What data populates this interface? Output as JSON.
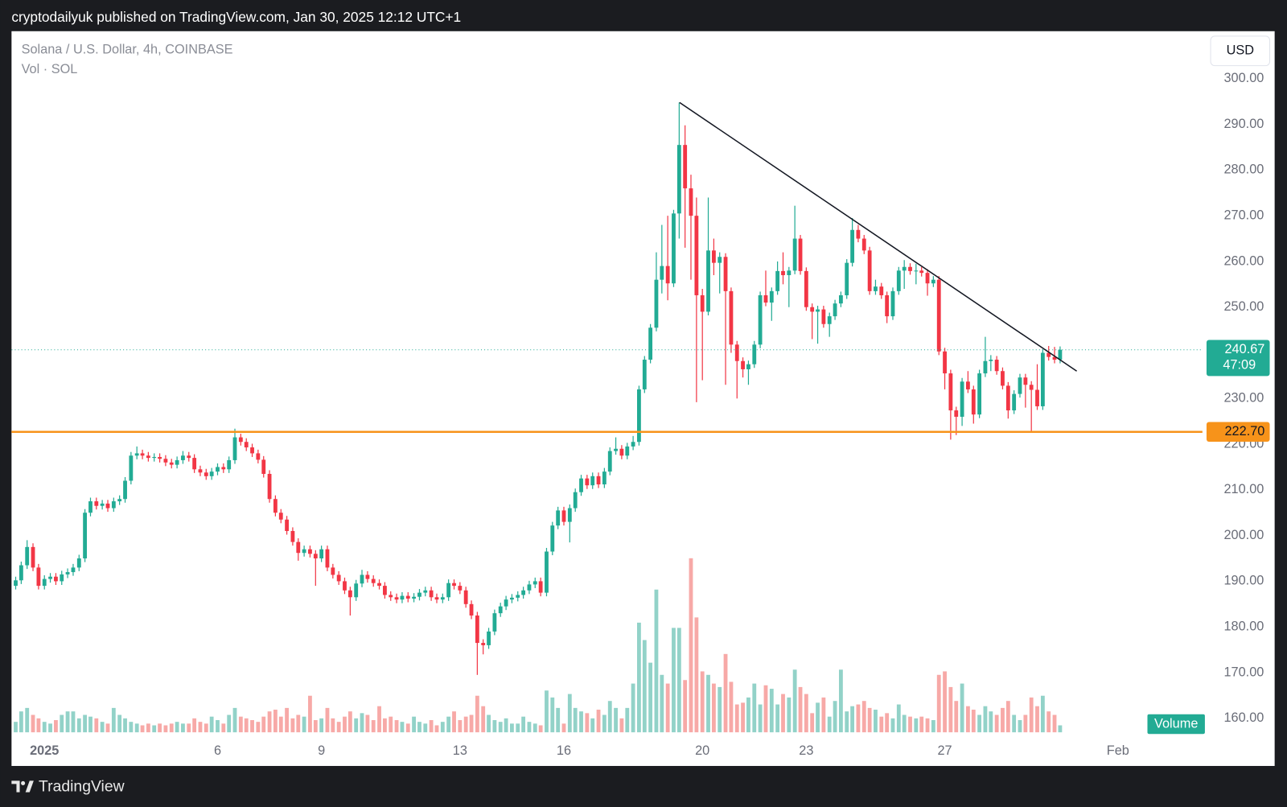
{
  "header": {
    "publisher": "cryptodailyuk published on TradingView.com, Jan 30, 2025 12:12 UTC+1",
    "brand": "TradingView"
  },
  "chart_data": {
    "type": "candlestick",
    "title": "Solana / U.S. Dollar, 4h, COINBASE",
    "volume_label": "Vol · SOL",
    "currency": "USD",
    "volume_badge": "Volume",
    "up_color": "#22ab94",
    "down_color": "#f23645",
    "volume_up_color": "#92d2c8",
    "volume_down_color": "#f7a9a7",
    "grid": false,
    "xlim": [
      0.05,
      34.44
    ],
    "xticks": [
      {
        "value": 1,
        "label": "2025"
      },
      6,
      9,
      13,
      16,
      20,
      23,
      27,
      {
        "value": 32,
        "label": "Feb"
      }
    ],
    "ylim": [
      155.5,
      310.4
    ],
    "yticks": [
      {
        "value": 160,
        "label": "160.00"
      },
      {
        "value": 170,
        "label": "170.00"
      },
      {
        "value": 180,
        "label": "180.00"
      },
      {
        "value": 190,
        "label": "190.00"
      },
      {
        "value": 200,
        "label": "200.00"
      },
      {
        "value": 210,
        "label": "210.00"
      },
      {
        "value": 220,
        "label": "220.00"
      },
      {
        "value": 230,
        "label": "230.00"
      },
      {
        "value": 240,
        "label": "240.00"
      },
      {
        "value": 250,
        "label": "250.00"
      },
      {
        "value": 260,
        "label": "260.00"
      },
      {
        "value": 270,
        "label": "270.00"
      },
      {
        "value": 280,
        "label": "280.00"
      },
      {
        "value": 290,
        "label": "290.00"
      },
      {
        "value": 300,
        "label": "300.00"
      }
    ],
    "vlim": [
      0,
      100
    ],
    "support": {
      "value": 222.7,
      "label": "222.70",
      "color": "#f7931a"
    },
    "last_price": {
      "value": 240.67,
      "countdown": "47:09"
    },
    "trendline": {
      "x": [
        19.34,
        30.81
      ],
      "y": [
        294.8,
        236.0
      ]
    },
    "x": [
      0.17,
      0.33,
      0.5,
      0.67,
      0.83,
      1,
      1.17,
      1.33,
      1.5,
      1.67,
      1.83,
      2,
      2.17,
      2.33,
      2.5,
      2.67,
      2.83,
      3,
      3.17,
      3.33,
      3.5,
      3.67,
      3.83,
      4,
      4.17,
      4.33,
      4.5,
      4.67,
      4.83,
      5,
      5.17,
      5.33,
      5.5,
      5.67,
      5.83,
      6,
      6.17,
      6.33,
      6.5,
      6.67,
      6.83,
      7,
      7.17,
      7.33,
      7.5,
      7.67,
      7.83,
      8,
      8.17,
      8.33,
      8.5,
      8.67,
      8.83,
      9,
      9.17,
      9.33,
      9.5,
      9.67,
      9.83,
      10,
      10.17,
      10.33,
      10.5,
      10.67,
      10.83,
      11,
      11.17,
      11.33,
      11.5,
      11.67,
      11.83,
      12,
      12.17,
      12.33,
      12.5,
      12.67,
      12.83,
      13,
      13.17,
      13.33,
      13.5,
      13.67,
      13.83,
      14,
      14.17,
      14.33,
      14.5,
      14.67,
      14.83,
      15,
      15.17,
      15.33,
      15.5,
      15.67,
      15.83,
      16,
      16.17,
      16.33,
      16.5,
      16.67,
      16.83,
      17,
      17.17,
      17.33,
      17.5,
      17.67,
      17.83,
      18,
      18.17,
      18.33,
      18.5,
      18.67,
      18.83,
      19,
      19.17,
      19.33,
      19.5,
      19.67,
      19.83,
      20,
      20.17,
      20.33,
      20.5,
      20.67,
      20.83,
      21,
      21.17,
      21.33,
      21.5,
      21.67,
      21.83,
      22,
      22.17,
      22.33,
      22.5,
      22.67,
      22.83,
      23,
      23.17,
      23.33,
      23.5,
      23.67,
      23.83,
      24,
      24.17,
      24.33,
      24.5,
      24.67,
      24.83,
      25,
      25.17,
      25.33,
      25.5,
      25.67,
      25.83,
      26,
      26.17,
      26.33,
      26.5,
      26.67,
      26.83,
      27,
      27.17,
      27.33,
      27.5,
      27.67,
      27.83,
      28,
      28.17,
      28.33,
      28.5,
      28.67,
      28.83,
      29,
      29.17,
      29.33,
      29.5,
      29.67,
      29.83,
      30,
      30.17,
      30.33
    ],
    "ohlc": [
      [
        189,
        191,
        188.2,
        190.2
      ],
      [
        190.2,
        194.3,
        189.4,
        193.5
      ],
      [
        193.5,
        199,
        192.7,
        197.5
      ],
      [
        197.5,
        198.3,
        192.2,
        193
      ],
      [
        193,
        193.8,
        188.2,
        189
      ],
      [
        189,
        191.3,
        188.2,
        190.5
      ],
      [
        190.5,
        191.8,
        189.7,
        191
      ],
      [
        191,
        191.8,
        189.2,
        190
      ],
      [
        190,
        192.3,
        189.2,
        191.5
      ],
      [
        191.5,
        192.8,
        190.7,
        192
      ],
      [
        192,
        193.8,
        191.2,
        193
      ],
      [
        193,
        195.8,
        192.2,
        195
      ],
      [
        195,
        205.8,
        194.2,
        205
      ],
      [
        205,
        208.3,
        204.2,
        207.5
      ],
      [
        207.5,
        208.3,
        205.7,
        206.5
      ],
      [
        206.5,
        207.8,
        205.7,
        207
      ],
      [
        207,
        207.8,
        205.2,
        206
      ],
      [
        206,
        208.3,
        205.2,
        207.5
      ],
      [
        207.5,
        208.8,
        206.7,
        208
      ],
      [
        208,
        212.8,
        207.2,
        212
      ],
      [
        212,
        218.3,
        211.2,
        217.5
      ],
      [
        217.5,
        219.5,
        216.7,
        218
      ],
      [
        218,
        218.8,
        216.7,
        217.5
      ],
      [
        217.5,
        218.3,
        216.2,
        217
      ],
      [
        217,
        218,
        216.2,
        217.2
      ],
      [
        217.2,
        218,
        216,
        216.8
      ],
      [
        216.8,
        217.6,
        215.2,
        216
      ],
      [
        216,
        216.8,
        214.7,
        215.5
      ],
      [
        215.5,
        217.3,
        214.7,
        216.5
      ],
      [
        216.5,
        218.5,
        215.7,
        217.5
      ],
      [
        217.5,
        218.3,
        216.2,
        217
      ],
      [
        217,
        217.8,
        213.7,
        214.5
      ],
      [
        214.5,
        215.3,
        213,
        213.8
      ],
      [
        213.8,
        214.6,
        212.2,
        213
      ],
      [
        213,
        214.8,
        212.2,
        214
      ],
      [
        214,
        215.8,
        213.2,
        215
      ],
      [
        215,
        215.8,
        213.7,
        214.5
      ],
      [
        214.5,
        217.3,
        213.7,
        216.5
      ],
      [
        216.5,
        223.4,
        215.7,
        221.5
      ],
      [
        221.5,
        222.3,
        219.7,
        220.5
      ],
      [
        220.5,
        221.3,
        218.5,
        219.3
      ],
      [
        219.3,
        220.1,
        217.2,
        218
      ],
      [
        218,
        218.8,
        215.8,
        216.6
      ],
      [
        216.6,
        217.4,
        212.7,
        213.5
      ],
      [
        213.5,
        214.3,
        207.2,
        208
      ],
      [
        208,
        208.8,
        204.2,
        205
      ],
      [
        205,
        205.8,
        202.7,
        203.5
      ],
      [
        203.5,
        204.3,
        200.2,
        201
      ],
      [
        201,
        201.8,
        197.8,
        198.6
      ],
      [
        198.6,
        199.4,
        194.5,
        196.2
      ],
      [
        196.2,
        197.8,
        195.4,
        197
      ],
      [
        197,
        197.8,
        195.2,
        196
      ],
      [
        196,
        196.8,
        189,
        195
      ],
      [
        195,
        197.8,
        194.2,
        197
      ],
      [
        197,
        197.8,
        192.2,
        193
      ],
      [
        193,
        193.8,
        190.6,
        191.4
      ],
      [
        191.4,
        192.2,
        189.2,
        190
      ],
      [
        190,
        190.8,
        187.2,
        188
      ],
      [
        188,
        188.8,
        182.5,
        186.5
      ],
      [
        186.5,
        190.3,
        185.7,
        189.5
      ],
      [
        189.5,
        192.5,
        188.7,
        191.4
      ],
      [
        191.4,
        192.2,
        189.7,
        190.5
      ],
      [
        190.5,
        191.3,
        188.8,
        189.6
      ],
      [
        189.6,
        190.4,
        188.2,
        189
      ],
      [
        189,
        189.8,
        186.2,
        187
      ],
      [
        187,
        187.8,
        185.7,
        186.5
      ],
      [
        186.5,
        187.3,
        185.2,
        186
      ],
      [
        186,
        187.6,
        185.2,
        186.8
      ],
      [
        186.8,
        187.6,
        185.4,
        186.2
      ],
      [
        186.2,
        187.4,
        185.4,
        186.6
      ],
      [
        186.6,
        188.3,
        185.8,
        187.5
      ],
      [
        187.5,
        188.8,
        186.7,
        188
      ],
      [
        188,
        188.8,
        185.7,
        186.5
      ],
      [
        186.5,
        187.3,
        185.2,
        186
      ],
      [
        186,
        187.3,
        185.2,
        186.5
      ],
      [
        186.5,
        190.4,
        185.7,
        189.6
      ],
      [
        189.6,
        190.4,
        188.2,
        189
      ],
      [
        189,
        189.8,
        187.2,
        188
      ],
      [
        188,
        188.8,
        184.2,
        185
      ],
      [
        185,
        185.8,
        181.7,
        182.5
      ],
      [
        182.5,
        183.3,
        169.5,
        176.5
      ],
      [
        176.5,
        177.3,
        174,
        176
      ],
      [
        176,
        179.8,
        175.2,
        179
      ],
      [
        179,
        183.8,
        178.2,
        183
      ],
      [
        183,
        185.3,
        182.2,
        184.5
      ],
      [
        184.5,
        186.8,
        183.7,
        186
      ],
      [
        186,
        187.2,
        185.2,
        186.4
      ],
      [
        186.4,
        187.8,
        185.6,
        187
      ],
      [
        187,
        188.8,
        186.2,
        188
      ],
      [
        188,
        190.1,
        187.2,
        189.3
      ],
      [
        189.3,
        190.8,
        188.5,
        190
      ],
      [
        190,
        190.8,
        186.7,
        187.5
      ],
      [
        187.5,
        197.3,
        186.7,
        196.5
      ],
      [
        196.5,
        203,
        195.7,
        202.2
      ],
      [
        202.2,
        206.3,
        201.4,
        205.5
      ],
      [
        205.5,
        206.3,
        202.2,
        203
      ],
      [
        203,
        206.8,
        198.5,
        206
      ],
      [
        206,
        210.3,
        205.2,
        209.5
      ],
      [
        209.5,
        213.3,
        208.7,
        212.5
      ],
      [
        212.5,
        213.3,
        210.2,
        211
      ],
      [
        211,
        213.8,
        210.2,
        213
      ],
      [
        213,
        213.8,
        210.4,
        211.2
      ],
      [
        211.2,
        214.8,
        210.4,
        214
      ],
      [
        214,
        219.3,
        213.2,
        218.5
      ],
      [
        218.5,
        221.5,
        217.7,
        219
      ],
      [
        219,
        219.8,
        216.7,
        217.5
      ],
      [
        217.5,
        220.3,
        216.7,
        219.5
      ],
      [
        219.5,
        221.8,
        218.7,
        220.5
      ],
      [
        220.5,
        232.8,
        219.7,
        232
      ],
      [
        232,
        239.3,
        231.2,
        238.5
      ],
      [
        238.5,
        246.3,
        237.7,
        245.5
      ],
      [
        245.5,
        262,
        244.7,
        256
      ],
      [
        256,
        268,
        253,
        259
      ],
      [
        259,
        270,
        251.5,
        255.2
      ],
      [
        255.2,
        271.3,
        254.4,
        270.5
      ],
      [
        270.5,
        294.8,
        265,
        285.5
      ],
      [
        285.5,
        289.8,
        263,
        276
      ],
      [
        276,
        279,
        256,
        270
      ],
      [
        270,
        274,
        229.2,
        252.6
      ],
      [
        252.6,
        254,
        234,
        249
      ],
      [
        249,
        274,
        248.2,
        262.4
      ],
      [
        262.4,
        265,
        257,
        259.7
      ],
      [
        259.7,
        262,
        253,
        261
      ],
      [
        261,
        261.8,
        233,
        253.5
      ],
      [
        253.5,
        254.3,
        240,
        241.8
      ],
      [
        241.8,
        242.6,
        230,
        238.2
      ],
      [
        238.2,
        239,
        234.6,
        236.4
      ],
      [
        236.4,
        238.3,
        233,
        237.5
      ],
      [
        237.5,
        242.6,
        236.7,
        241.8
      ],
      [
        241.8,
        253.4,
        241,
        252.6
      ],
      [
        252.6,
        258,
        250.2,
        251
      ],
      [
        251,
        254.3,
        247,
        253.5
      ],
      [
        253.5,
        260,
        252.7,
        257.9
      ],
      [
        257.9,
        262,
        255,
        257
      ],
      [
        257,
        258.8,
        250,
        258
      ],
      [
        258,
        272.2,
        257.2,
        265
      ],
      [
        265,
        265.8,
        257.1,
        257.9
      ],
      [
        257.9,
        258.7,
        249.2,
        250
      ],
      [
        250,
        250.8,
        243,
        249
      ],
      [
        249,
        250.3,
        242,
        249.5
      ],
      [
        249.5,
        250.3,
        245.5,
        246.3
      ],
      [
        246.3,
        248.8,
        243.5,
        248
      ],
      [
        248,
        251.6,
        247.2,
        250.8
      ],
      [
        250.8,
        253.4,
        250,
        252.6
      ],
      [
        252.6,
        260.5,
        251.8,
        259.7
      ],
      [
        259.7,
        269.5,
        258.9,
        266.9
      ],
      [
        266.9,
        268,
        264.2,
        265
      ],
      [
        265,
        265.8,
        261.6,
        262.4
      ],
      [
        262.4,
        263.2,
        252.7,
        253.5
      ],
      [
        253.5,
        256,
        252.7,
        254.5
      ],
      [
        254.5,
        255.3,
        251.8,
        252.6
      ],
      [
        252.6,
        253.4,
        246.5,
        248
      ],
      [
        248,
        254.3,
        247.2,
        253.5
      ],
      [
        253.5,
        258.8,
        252.7,
        258
      ],
      [
        258,
        260.3,
        254,
        258.8
      ],
      [
        258.8,
        259.6,
        257.1,
        257.9
      ],
      [
        257.9,
        259.5,
        255,
        258
      ],
      [
        258,
        258.8,
        256.7,
        257.5
      ],
      [
        257.5,
        258.3,
        252.5,
        255.2
      ],
      [
        255.2,
        256.8,
        254.4,
        256
      ],
      [
        256,
        256.8,
        239.5,
        240.3
      ],
      [
        240.3,
        241.1,
        232,
        235.5
      ],
      [
        235.5,
        236.3,
        221,
        227.4
      ],
      [
        227.4,
        228.2,
        222,
        226
      ],
      [
        226,
        234.5,
        224,
        233.7
      ],
      [
        233.7,
        236,
        231.2,
        232
      ],
      [
        232,
        232.8,
        224.5,
        226.5
      ],
      [
        226.5,
        236.3,
        225.7,
        235.5
      ],
      [
        235.5,
        243.5,
        234.7,
        238.2
      ],
      [
        238.2,
        239.5,
        236,
        238.5
      ],
      [
        238.5,
        239.3,
        235.2,
        236
      ],
      [
        236,
        236.8,
        232,
        232.8
      ],
      [
        232.8,
        233.6,
        225.6,
        227.4
      ],
      [
        227.4,
        231.8,
        226.6,
        231
      ],
      [
        231,
        235.4,
        230.2,
        234.6
      ],
      [
        234.6,
        235.4,
        228,
        233
      ],
      [
        233,
        233.8,
        222.7,
        231.9
      ],
      [
        231.9,
        237.5,
        227.5,
        228.3
      ],
      [
        228.3,
        240.8,
        227.5,
        240
      ],
      [
        240,
        241.5,
        238.3,
        239.1
      ],
      [
        239.1,
        241.3,
        237.7,
        238.5
      ],
      [
        238.5,
        241.4,
        237.7,
        240.67
      ]
    ],
    "volume": [
      6,
      12,
      14,
      10,
      8,
      6,
      5,
      7,
      10,
      12,
      12,
      8,
      10,
      9,
      8,
      6,
      5,
      14,
      10,
      8,
      6,
      5,
      4,
      5,
      4,
      5,
      4,
      5,
      6,
      5,
      5,
      8,
      6,
      5,
      9,
      7,
      5,
      10,
      14,
      9,
      8,
      7,
      6,
      9,
      12,
      13,
      9,
      14,
      8,
      10,
      9,
      21,
      7,
      8,
      14,
      8,
      6,
      9,
      12,
      8,
      11,
      10,
      7,
      15,
      8,
      9,
      7,
      6,
      5,
      9,
      6,
      5,
      7,
      4,
      6,
      9,
      12,
      7,
      9,
      10,
      21,
      15,
      10,
      7,
      6,
      8,
      5,
      5,
      9,
      6,
      5,
      4,
      24,
      20,
      14,
      5,
      22,
      14,
      12,
      11,
      8,
      13,
      10,
      18,
      14,
      8,
      14,
      28,
      63,
      53,
      40,
      82,
      33,
      28,
      60,
      60,
      30,
      100,
      66,
      35,
      33,
      28,
      26,
      45,
      29,
      16,
      17,
      20,
      28,
      16,
      27,
      25,
      16,
      22,
      20,
      36,
      26,
      22,
      11,
      17,
      20,
      9,
      18,
      36,
      12,
      15,
      16,
      18,
      14,
      13,
      9,
      11,
      8,
      16,
      10,
      9,
      8,
      9,
      8,
      7,
      33,
      35,
      26,
      18,
      28,
      15,
      13,
      10,
      15,
      12,
      10,
      14,
      18,
      10,
      7,
      10,
      20,
      15,
      21,
      12,
      10,
      4
    ]
  }
}
